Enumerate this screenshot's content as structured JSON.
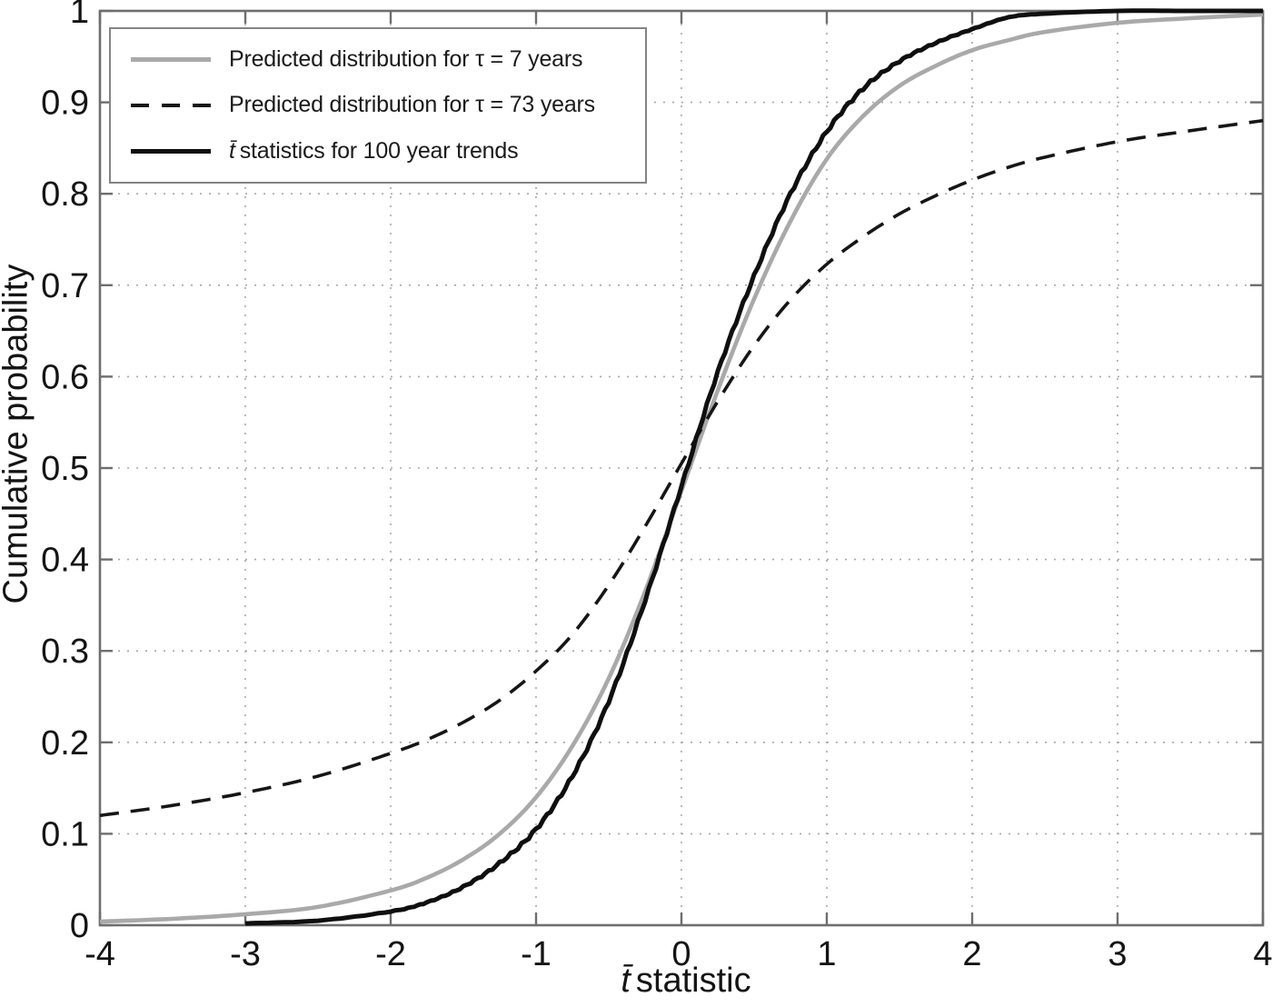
{
  "figure": {
    "xlabel": {
      "prefix": "t̄",
      "rest": "statistic"
    },
    "ylabel": "Cumulative probability"
  },
  "colors": {
    "frame": "#6e6e6e",
    "grid": "#a8a8a8",
    "text": "#141414",
    "gray_curve": "#a9a9a9",
    "black_curve": "#0f0f0f",
    "dashed_curve": "#161616"
  },
  "chart_data": {
    "type": "line",
    "title": "",
    "xlabel": "t̄ statistic",
    "ylabel": "Cumulative probability",
    "xlim": [
      -4,
      4
    ],
    "ylim": [
      0,
      1
    ],
    "grid": true,
    "legend_position": "top-left",
    "x_ticks": [
      -4,
      -3,
      -2,
      -1,
      0,
      1,
      2,
      3,
      4
    ],
    "x_tick_labels": [
      "-4",
      "-3",
      "-2",
      "-1",
      "0",
      "1",
      "2",
      "3",
      "4"
    ],
    "y_ticks": [
      0,
      0.1,
      0.2,
      0.3,
      0.4,
      0.5,
      0.6,
      0.7,
      0.8,
      0.9,
      1
    ],
    "y_tick_labels": [
      "0",
      "0.1",
      "0.2",
      "0.3",
      "0.4",
      "0.5",
      "0.6",
      "0.7",
      "0.8",
      "0.9",
      "1"
    ],
    "x": [
      -4,
      -3.5,
      -3,
      -2.5,
      -2,
      -1.75,
      -1.5,
      -1.25,
      -1,
      -0.75,
      -0.5,
      -0.25,
      0,
      0.25,
      0.5,
      0.75,
      1,
      1.25,
      1.5,
      1.75,
      2,
      2.25,
      2.5,
      3,
      3.5,
      4
    ],
    "series": [
      {
        "name": "Predicted distribution for τ = 7 years",
        "style": "solid",
        "color": "#a9a9a9",
        "width": 4.6,
        "jitter": false,
        "values": [
          0.004,
          0.007,
          0.012,
          0.02,
          0.038,
          0.052,
          0.072,
          0.1,
          0.14,
          0.196,
          0.27,
          0.365,
          0.475,
          0.585,
          0.685,
          0.77,
          0.838,
          0.885,
          0.918,
          0.94,
          0.957,
          0.968,
          0.977,
          0.987,
          0.992,
          0.996
        ]
      },
      {
        "name": "Predicted distribution for τ = 73 years",
        "style": "dashed",
        "color": "#161616",
        "width": 3.6,
        "jitter": false,
        "values": [
          0.12,
          0.131,
          0.145,
          0.163,
          0.188,
          0.203,
          0.222,
          0.246,
          0.278,
          0.318,
          0.372,
          0.436,
          0.505,
          0.573,
          0.634,
          0.684,
          0.723,
          0.753,
          0.778,
          0.798,
          0.815,
          0.829,
          0.84,
          0.857,
          0.869,
          0.88
        ]
      },
      {
        "name": "t̄ statistics for 100 year trends",
        "name_prefix": "t̄",
        "name_rest": "statistics for 100 year trends",
        "style": "solid",
        "color": "#0f0f0f",
        "width": 5,
        "jitter": true,
        "values": [
          null,
          null,
          0.002,
          0.005,
          0.015,
          0.025,
          0.042,
          0.068,
          0.105,
          0.163,
          0.245,
          0.355,
          0.48,
          0.605,
          0.71,
          0.8,
          0.868,
          0.915,
          0.945,
          0.965,
          0.98,
          0.993,
          0.997,
          1,
          1,
          1
        ]
      }
    ]
  }
}
